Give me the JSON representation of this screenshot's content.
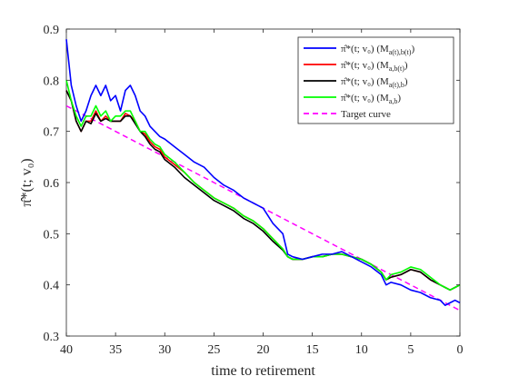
{
  "chart_data": {
    "type": "line",
    "title": "",
    "xlabel": "time to retirement",
    "ylabel": "π̂*(t; v₀)",
    "xlim": [
      40,
      0
    ],
    "x_reversed": true,
    "ylim": [
      0.3,
      0.9
    ],
    "x_ticks": [
      40,
      35,
      30,
      25,
      20,
      15,
      10,
      5,
      0
    ],
    "y_ticks": [
      0.3,
      0.4,
      0.5,
      0.6,
      0.7,
      0.8,
      0.9
    ],
    "grid": false,
    "legend_position": "top-right",
    "x": [
      40,
      39.5,
      39,
      38.5,
      38,
      37.5,
      37,
      36.5,
      36,
      35.5,
      35,
      34.5,
      34,
      33.5,
      33,
      32.5,
      32,
      31.5,
      31,
      30.5,
      30,
      29,
      28,
      27,
      26,
      25,
      24,
      23,
      22,
      21,
      20,
      19,
      18,
      17.5,
      17,
      16,
      15,
      14,
      13,
      12,
      11,
      10,
      9,
      8,
      7.5,
      7,
      6,
      5,
      4,
      3,
      2,
      1.5,
      1,
      0.5,
      0
    ],
    "series": [
      {
        "name": "π̂*(t; v₀)  (M_{a(t),b(t)})",
        "color": "#0000ff",
        "values": [
          0.88,
          0.79,
          0.75,
          0.72,
          0.74,
          0.77,
          0.79,
          0.77,
          0.79,
          0.76,
          0.77,
          0.74,
          0.78,
          0.79,
          0.77,
          0.74,
          0.73,
          0.71,
          0.7,
          0.69,
          0.685,
          0.67,
          0.655,
          0.64,
          0.63,
          0.61,
          0.595,
          0.585,
          0.57,
          0.56,
          0.55,
          0.52,
          0.5,
          0.46,
          0.455,
          0.45,
          0.455,
          0.46,
          0.46,
          0.465,
          0.455,
          0.445,
          0.435,
          0.42,
          0.4,
          0.405,
          0.4,
          0.39,
          0.385,
          0.375,
          0.37,
          0.36,
          0.365,
          0.37,
          0.365
        ]
      },
      {
        "name": "π̂*(t; v₀)  (M_{a,b(t)})",
        "color": "#ff0000",
        "values": [
          0.78,
          0.76,
          0.72,
          0.7,
          0.72,
          0.72,
          0.74,
          0.72,
          0.73,
          0.72,
          0.72,
          0.72,
          0.735,
          0.73,
          0.72,
          0.7,
          0.695,
          0.68,
          0.67,
          0.665,
          0.65,
          0.635,
          0.62,
          0.6,
          0.585,
          0.57,
          0.56,
          0.55,
          0.535,
          0.525,
          0.51,
          0.49,
          0.47,
          0.455,
          0.45,
          0.45,
          0.455,
          0.455,
          0.46,
          0.46,
          0.455,
          0.45,
          0.44,
          0.425,
          0.41,
          0.415,
          0.42,
          0.43,
          0.425,
          0.41,
          0.4,
          0.395,
          0.39,
          0.395,
          0.4
        ]
      },
      {
        "name": "π̂*(t; v₀)  (M_{a(t),b})",
        "color": "#000000",
        "values": [
          0.78,
          0.76,
          0.72,
          0.7,
          0.72,
          0.715,
          0.735,
          0.72,
          0.725,
          0.72,
          0.72,
          0.72,
          0.73,
          0.73,
          0.715,
          0.7,
          0.69,
          0.675,
          0.665,
          0.66,
          0.645,
          0.63,
          0.61,
          0.595,
          0.58,
          0.565,
          0.555,
          0.545,
          0.53,
          0.52,
          0.505,
          0.485,
          0.468,
          0.455,
          0.45,
          0.45,
          0.455,
          0.455,
          0.46,
          0.46,
          0.455,
          0.45,
          0.44,
          0.425,
          0.41,
          0.415,
          0.42,
          0.43,
          0.425,
          0.41,
          0.4,
          0.395,
          0.39,
          0.395,
          0.4
        ]
      },
      {
        "name": "π̂*(t; v₀)  (M_{a,b})",
        "color": "#00ff00",
        "values": [
          0.8,
          0.76,
          0.73,
          0.71,
          0.73,
          0.73,
          0.75,
          0.73,
          0.74,
          0.72,
          0.73,
          0.73,
          0.74,
          0.74,
          0.72,
          0.7,
          0.7,
          0.685,
          0.675,
          0.67,
          0.655,
          0.64,
          0.62,
          0.6,
          0.585,
          0.57,
          0.56,
          0.55,
          0.535,
          0.525,
          0.51,
          0.49,
          0.47,
          0.455,
          0.45,
          0.45,
          0.455,
          0.455,
          0.46,
          0.46,
          0.455,
          0.45,
          0.44,
          0.425,
          0.41,
          0.42,
          0.425,
          0.435,
          0.43,
          0.415,
          0.4,
          0.395,
          0.39,
          0.395,
          0.4
        ]
      },
      {
        "name": "Target curve",
        "color": "#ff00ff",
        "dashed": true,
        "values": [
          0.75,
          0.745,
          0.74,
          0.735,
          0.73,
          0.725,
          0.72,
          0.715,
          0.71,
          0.705,
          0.7,
          0.695,
          0.69,
          0.685,
          0.68,
          0.675,
          0.67,
          0.665,
          0.66,
          0.655,
          0.65,
          0.64,
          0.63,
          0.62,
          0.61,
          0.6,
          0.59,
          0.58,
          0.57,
          0.56,
          0.55,
          0.54,
          0.53,
          0.525,
          0.52,
          0.51,
          0.5,
          0.49,
          0.48,
          0.47,
          0.46,
          0.45,
          0.44,
          0.43,
          0.425,
          0.42,
          0.41,
          0.4,
          0.39,
          0.38,
          0.37,
          0.365,
          0.36,
          0.355,
          0.35
        ]
      }
    ],
    "legend": [
      {
        "lead": "π̂*(t; v₀)  (M",
        "sub": "a(t),b(t)",
        "tail": ")",
        "color": "#0000ff",
        "dashed": false
      },
      {
        "lead": "π̂*(t; v₀)  (M",
        "sub": "a,b(t)",
        "tail": ")",
        "color": "#ff0000",
        "dashed": false
      },
      {
        "lead": "π̂*(t; v₀)  (M",
        "sub": "a(t),b",
        "tail": ")",
        "color": "#000000",
        "dashed": false
      },
      {
        "lead": "π̂*(t; v₀)  (M",
        "sub": "a,b",
        "tail": ")",
        "color": "#00ff00",
        "dashed": false
      },
      {
        "lead": "Target curve",
        "sub": "",
        "tail": "",
        "color": "#ff00ff",
        "dashed": true
      }
    ]
  }
}
